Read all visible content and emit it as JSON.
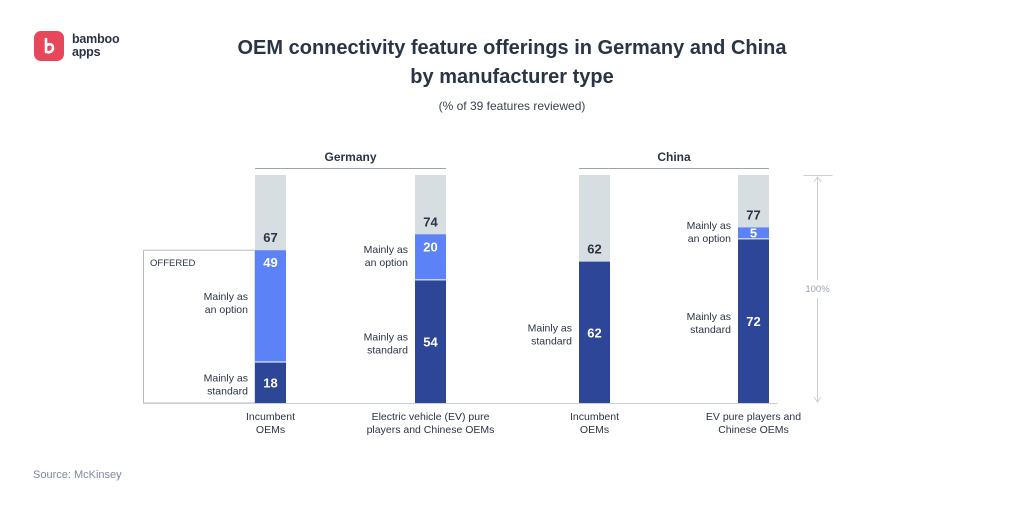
{
  "brand": {
    "line1": "bamboo",
    "line2": "apps"
  },
  "header": {
    "title_line1": "OEM connectivity feature offerings in Germany and China",
    "title_line2": "by manufacturer type",
    "subtitle": "(% of 39 features reviewed)"
  },
  "source": "Source: McKinsey",
  "chart_data": {
    "type": "bar",
    "stacked": true,
    "title": "OEM connectivity feature offerings in Germany and China by manufacturer type",
    "subtitle": "(% of 39 features reviewed)",
    "ylim": [
      0,
      100
    ],
    "scale_label": "100%",
    "offered_label": "OFFERED",
    "segment_labels": {
      "standard": [
        "Mainly as",
        "standard"
      ],
      "option": [
        "Mainly as",
        "an option"
      ]
    },
    "colors": {
      "standard": "#2d4698",
      "option": "#5b82f7",
      "background": "#d7dee2"
    },
    "groups": [
      {
        "name": "Germany",
        "bars": [
          {
            "category": [
              "Incumbent",
              "OEMs"
            ],
            "standard": 18,
            "option": 49,
            "offered": 67
          },
          {
            "category": [
              "Electric vehicle (EV) pure",
              "players and Chinese OEMs"
            ],
            "standard": 54,
            "option": 20,
            "offered": 74
          }
        ]
      },
      {
        "name": "China",
        "bars": [
          {
            "category": [
              "Incumbent",
              "OEMs"
            ],
            "standard": 62,
            "option": 0,
            "offered": 62
          },
          {
            "category": [
              "EV pure players and",
              "Chinese OEMs"
            ],
            "standard": 72,
            "option": 5,
            "offered": 77
          }
        ]
      }
    ]
  }
}
